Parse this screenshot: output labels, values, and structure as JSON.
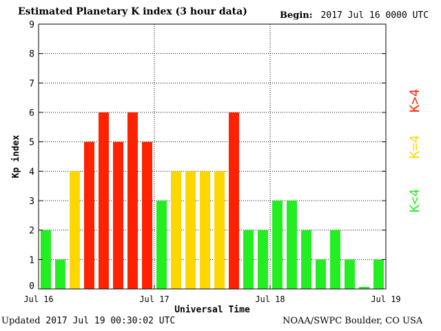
{
  "header": {
    "title": "Estimated Planetary K index (3 hour data)",
    "begin_label": "Begin:",
    "begin_value": "2017 Jul 16 0000 UTC"
  },
  "footer": {
    "updated_label": "Updated",
    "updated_value": "2017 Jul 19 00:30:02 UTC",
    "credit": "NOAA/SWPC Boulder, CO USA"
  },
  "colors": {
    "low": "#22ee22",
    "storm_threshold": "#ffd700",
    "high": "#ff2200"
  },
  "chart_data": {
    "type": "bar",
    "title": "Estimated Planetary K index (3 hour data)",
    "xlabel": "Universal Time",
    "ylabel": "Kp index",
    "ylim": [
      0,
      9
    ],
    "yticks": [
      0,
      1,
      2,
      3,
      4,
      5,
      6,
      7,
      8,
      9
    ],
    "xticks": [
      "Jul 16",
      "Jul 17",
      "Jul 18",
      "Jul 19"
    ],
    "grid": true,
    "bar_interval_hours": 3,
    "values": [
      2,
      1,
      4,
      5,
      6,
      5,
      6,
      5,
      3,
      4,
      4,
      4,
      4,
      6,
      2,
      2,
      3,
      3,
      2,
      1,
      2,
      1,
      0.07,
      1
    ],
    "legend": [
      {
        "label": "K<4",
        "color": "#22ee22"
      },
      {
        "label": "K=4",
        "color": "#ffd700"
      },
      {
        "label": "K>4",
        "color": "#ff2200"
      }
    ],
    "legend_position": "right"
  }
}
